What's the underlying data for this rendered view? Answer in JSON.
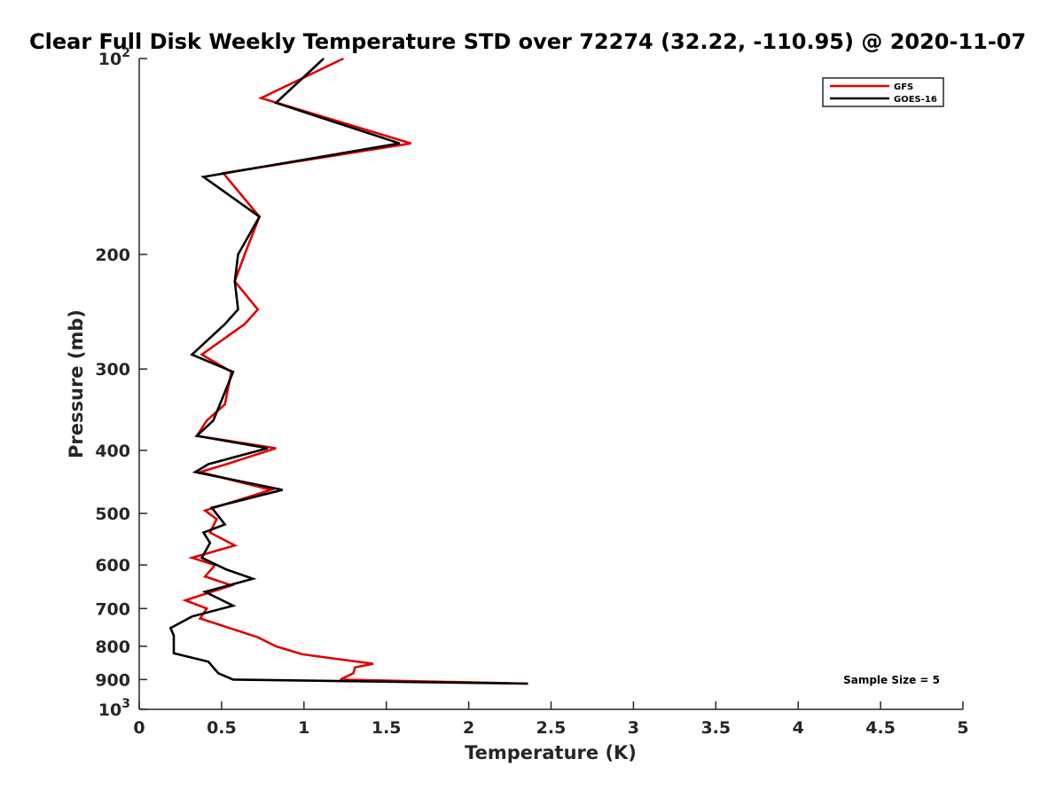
{
  "chart_data": {
    "type": "line",
    "title": "Clear Full Disk Weekly Temperature STD over 72274 (32.22, -110.95) @ 2020-11-07",
    "xlabel": "Temperature (K)",
    "ylabel": "Pressure (mb)",
    "xlim": [
      0,
      5
    ],
    "ylim": [
      100,
      1000
    ],
    "yscale": "log",
    "y_reversed": true,
    "grid": false,
    "x_ticks": [
      {
        "value": 0,
        "label": "0"
      },
      {
        "value": 0.5,
        "label": "0.5"
      },
      {
        "value": 1,
        "label": "1"
      },
      {
        "value": 1.5,
        "label": "1.5"
      },
      {
        "value": 2,
        "label": "2"
      },
      {
        "value": 2.5,
        "label": "2.5"
      },
      {
        "value": 3,
        "label": "3"
      },
      {
        "value": 3.5,
        "label": "3.5"
      },
      {
        "value": 4,
        "label": "4"
      },
      {
        "value": 4.5,
        "label": "4.5"
      },
      {
        "value": 5,
        "label": "5"
      }
    ],
    "y_ticks": [
      {
        "value": 100,
        "base": "10",
        "exp": "2"
      },
      {
        "value": 200,
        "label": "200"
      },
      {
        "value": 300,
        "label": "300"
      },
      {
        "value": 400,
        "label": "400"
      },
      {
        "value": 500,
        "label": "500"
      },
      {
        "value": 600,
        "label": "600"
      },
      {
        "value": 700,
        "label": "700"
      },
      {
        "value": 800,
        "label": "800"
      },
      {
        "value": 900,
        "label": "900"
      },
      {
        "value": 1000,
        "base": "10",
        "exp": "3"
      }
    ],
    "legend_position": "top-right",
    "series": [
      {
        "name": "GFS",
        "color": "#e00000",
        "points": [
          [
            1.24,
            100
          ],
          [
            0.74,
            115
          ],
          [
            1.65,
            135
          ],
          [
            0.51,
            150
          ],
          [
            0.73,
            175
          ],
          [
            0.64,
            200
          ],
          [
            0.58,
            220
          ],
          [
            0.72,
            243
          ],
          [
            0.64,
            256
          ],
          [
            0.38,
            285
          ],
          [
            0.56,
            303
          ],
          [
            0.52,
            340
          ],
          [
            0.41,
            360
          ],
          [
            0.35,
            380
          ],
          [
            0.83,
            397
          ],
          [
            0.53,
            420
          ],
          [
            0.37,
            432
          ],
          [
            0.8,
            460
          ],
          [
            0.4,
            495
          ],
          [
            0.47,
            510
          ],
          [
            0.43,
            535
          ],
          [
            0.58,
            560
          ],
          [
            0.32,
            585
          ],
          [
            0.46,
            600
          ],
          [
            0.4,
            625
          ],
          [
            0.56,
            645
          ],
          [
            0.28,
            680
          ],
          [
            0.41,
            700
          ],
          [
            0.37,
            725
          ],
          [
            0.72,
            775
          ],
          [
            0.83,
            800
          ],
          [
            0.99,
            823
          ],
          [
            1.42,
            851
          ],
          [
            1.31,
            862
          ],
          [
            1.3,
            880
          ],
          [
            1.22,
            900
          ],
          [
            2.36,
            913
          ]
        ]
      },
      {
        "name": "GOES-16",
        "color": "#000000",
        "points": [
          [
            1.12,
            100
          ],
          [
            0.83,
            117
          ],
          [
            1.58,
            135
          ],
          [
            0.39,
            152
          ],
          [
            0.73,
            175
          ],
          [
            0.6,
            200
          ],
          [
            0.58,
            220
          ],
          [
            0.6,
            243
          ],
          [
            0.52,
            256
          ],
          [
            0.32,
            285
          ],
          [
            0.57,
            303
          ],
          [
            0.49,
            340
          ],
          [
            0.45,
            360
          ],
          [
            0.35,
            380
          ],
          [
            0.78,
            397
          ],
          [
            0.42,
            420
          ],
          [
            0.34,
            432
          ],
          [
            0.87,
            460
          ],
          [
            0.44,
            490
          ],
          [
            0.52,
            520
          ],
          [
            0.39,
            535
          ],
          [
            0.43,
            555
          ],
          [
            0.38,
            585
          ],
          [
            0.53,
            610
          ],
          [
            0.69,
            630
          ],
          [
            0.4,
            660
          ],
          [
            0.57,
            693
          ],
          [
            0.32,
            720
          ],
          [
            0.19,
            750
          ],
          [
            0.21,
            770
          ],
          [
            0.21,
            820
          ],
          [
            0.42,
            845
          ],
          [
            0.48,
            880
          ],
          [
            0.57,
            900
          ],
          [
            2.36,
            913
          ]
        ]
      }
    ],
    "annotation": "Sample Size = 5"
  }
}
